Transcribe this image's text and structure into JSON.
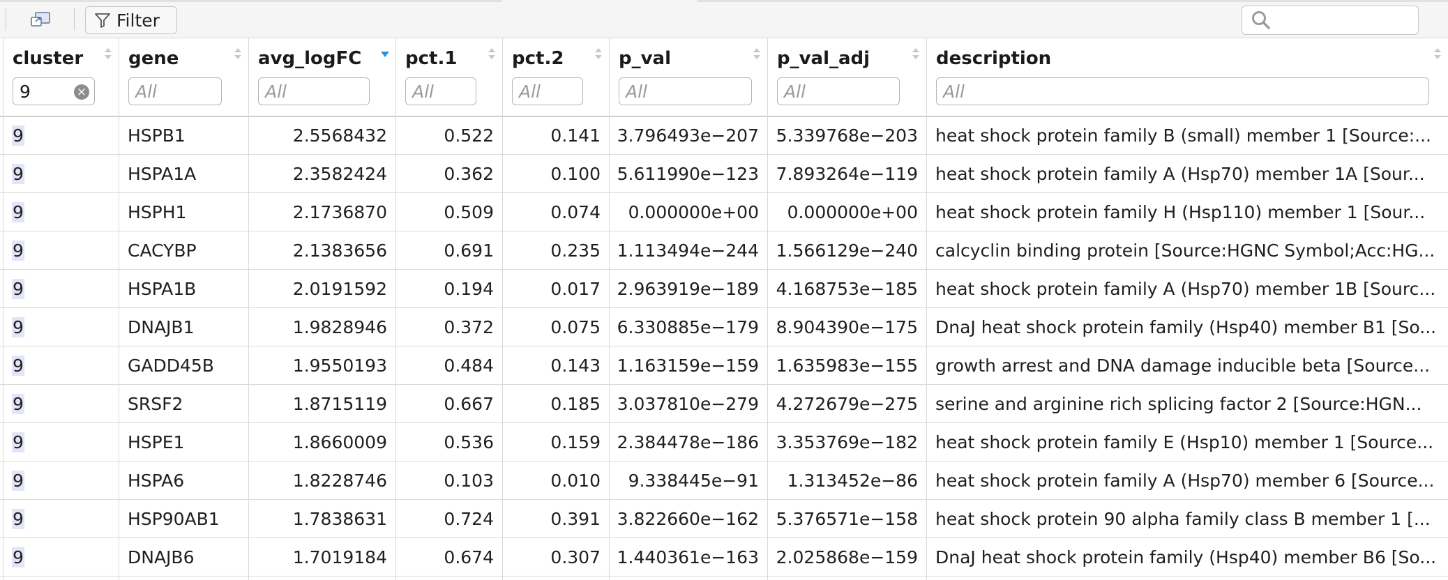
{
  "toolbar": {
    "filter_label": "Filter",
    "search_placeholder": ""
  },
  "columns": [
    {
      "key": "cluster",
      "label": "cluster",
      "filter": "9",
      "placeholder": "All"
    },
    {
      "key": "gene",
      "label": "gene",
      "filter": "",
      "placeholder": "All"
    },
    {
      "key": "avg_logFC",
      "label": "avg_logFC",
      "filter": "",
      "placeholder": "All",
      "sorted": "descending"
    },
    {
      "key": "pct1",
      "label": "pct.1",
      "filter": "",
      "placeholder": "All"
    },
    {
      "key": "pct2",
      "label": "pct.2",
      "filter": "",
      "placeholder": "All"
    },
    {
      "key": "p_val",
      "label": "p_val",
      "filter": "",
      "placeholder": "All"
    },
    {
      "key": "p_val_adj",
      "label": "p_val_adj",
      "filter": "",
      "placeholder": "All"
    },
    {
      "key": "description",
      "label": "description",
      "filter": "",
      "placeholder": "All"
    }
  ],
  "rows": [
    {
      "cluster": "9",
      "gene": "HSPB1",
      "avg_logFC": "2.5568432",
      "pct1": "0.522",
      "pct2": "0.141",
      "p_val": "3.796493e−207",
      "p_val_adj": "5.339768e−203",
      "description": "heat shock protein family B (small) member 1 [Source:..."
    },
    {
      "cluster": "9",
      "gene": "HSPA1A",
      "avg_logFC": "2.3582424",
      "pct1": "0.362",
      "pct2": "0.100",
      "p_val": "5.611990e−123",
      "p_val_adj": "7.893264e−119",
      "description": "heat shock protein family A (Hsp70) member 1A [Sour..."
    },
    {
      "cluster": "9",
      "gene": "HSPH1",
      "avg_logFC": "2.1736870",
      "pct1": "0.509",
      "pct2": "0.074",
      "p_val": "0.000000e+00",
      "p_val_adj": "0.000000e+00",
      "description": "heat shock protein family H (Hsp110) member 1 [Sour..."
    },
    {
      "cluster": "9",
      "gene": "CACYBP",
      "avg_logFC": "2.1383656",
      "pct1": "0.691",
      "pct2": "0.235",
      "p_val": "1.113494e−244",
      "p_val_adj": "1.566129e−240",
      "description": "calcyclin binding protein [Source:HGNC Symbol;Acc:HG..."
    },
    {
      "cluster": "9",
      "gene": "HSPA1B",
      "avg_logFC": "2.0191592",
      "pct1": "0.194",
      "pct2": "0.017",
      "p_val": "2.963919e−189",
      "p_val_adj": "4.168753e−185",
      "description": "heat shock protein family A (Hsp70) member 1B [Sourc..."
    },
    {
      "cluster": "9",
      "gene": "DNAJB1",
      "avg_logFC": "1.9828946",
      "pct1": "0.372",
      "pct2": "0.075",
      "p_val": "6.330885e−179",
      "p_val_adj": "8.904390e−175",
      "description": "DnaJ heat shock protein family (Hsp40) member B1 [So..."
    },
    {
      "cluster": "9",
      "gene": "GADD45B",
      "avg_logFC": "1.9550193",
      "pct1": "0.484",
      "pct2": "0.143",
      "p_val": "1.163159e−159",
      "p_val_adj": "1.635983e−155",
      "description": "growth arrest and DNA damage inducible beta [Source..."
    },
    {
      "cluster": "9",
      "gene": "SRSF2",
      "avg_logFC": "1.8715119",
      "pct1": "0.667",
      "pct2": "0.185",
      "p_val": "3.037810e−279",
      "p_val_adj": "4.272679e−275",
      "description": "serine and arginine rich splicing factor 2 [Source:HGN..."
    },
    {
      "cluster": "9",
      "gene": "HSPE1",
      "avg_logFC": "1.8660009",
      "pct1": "0.536",
      "pct2": "0.159",
      "p_val": "2.384478e−186",
      "p_val_adj": "3.353769e−182",
      "description": "heat shock protein family E (Hsp10) member 1 [Source..."
    },
    {
      "cluster": "9",
      "gene": "HSPA6",
      "avg_logFC": "1.8228746",
      "pct1": "0.103",
      "pct2": "0.010",
      "p_val": "9.338445e−91",
      "p_val_adj": "1.313452e−86",
      "description": "heat shock protein family A (Hsp70) member 6 [Source..."
    },
    {
      "cluster": "9",
      "gene": "HSP90AB1",
      "avg_logFC": "1.7838631",
      "pct1": "0.724",
      "pct2": "0.391",
      "p_val": "3.822660e−162",
      "p_val_adj": "5.376571e−158",
      "description": "heat shock protein 90 alpha family class B member 1 [..."
    },
    {
      "cluster": "9",
      "gene": "DNAJB6",
      "avg_logFC": "1.7019184",
      "pct1": "0.674",
      "pct2": "0.307",
      "p_val": "1.440361e−163",
      "p_val_adj": "2.025868e−159",
      "description": "DnaJ heat shock protein family (Hsp40) member B6 [So..."
    }
  ],
  "colors": {
    "sort_active": "#2f8fd8",
    "sort_inactive": "#c8c8c8",
    "cluster_highlight": "#e2e4f7"
  }
}
